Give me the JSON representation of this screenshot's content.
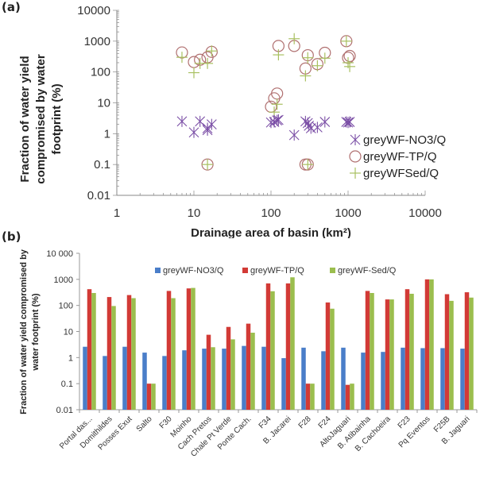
{
  "panels": {
    "a_label": "(a)",
    "b_label": "(b)"
  },
  "chart_data": [
    {
      "type": "scatter",
      "title": "",
      "xlabel": "Drainage area of basin (km²)",
      "ylabel_lines": [
        "Fraction of water yield",
        "compromised by water",
        "footprint (%)"
      ],
      "xscale": "log",
      "yscale": "log",
      "xlim": [
        1,
        10000
      ],
      "ylim": [
        0.01,
        10000
      ],
      "xticks": [
        "1",
        "10",
        "100",
        "1000",
        "10000"
      ],
      "yticks": [
        "0.01",
        "0.1",
        "1",
        "10",
        "100",
        "1000",
        "10000"
      ],
      "legend_position": "right",
      "series": [
        {
          "name": "greyWF-NO3/Q",
          "marker": "asterisk",
          "color": "#7B4FA6",
          "points": [
            [
              7,
              2.5
            ],
            [
              10,
              1.1
            ],
            [
              12,
              2.5
            ],
            [
              15,
              1.3
            ],
            [
              15,
              1.5
            ],
            [
              17,
              2.0
            ],
            [
              100,
              2.3
            ],
            [
              110,
              2.4
            ],
            [
              120,
              2.7
            ],
            [
              125,
              2.8
            ],
            [
              200,
              0.9
            ],
            [
              280,
              2.5
            ],
            [
              300,
              2.2
            ],
            [
              310,
              1.8
            ],
            [
              330,
              1.5
            ],
            [
              400,
              1.6
            ],
            [
              500,
              2.4
            ],
            [
              950,
              2.4
            ],
            [
              1000,
              2.3
            ],
            [
              1050,
              2.4
            ]
          ]
        },
        {
          "name": "greyWF-TP/Q",
          "marker": "circle",
          "color": "#B07070",
          "points": [
            [
              7,
              430
            ],
            [
              10,
              210
            ],
            [
              12,
              250
            ],
            [
              15,
              300
            ],
            [
              17,
              450
            ],
            [
              15,
              0.1
            ],
            [
              100,
              7.5
            ],
            [
              110,
              14
            ],
            [
              120,
              20
            ],
            [
              125,
              700
            ],
            [
              200,
              700
            ],
            [
              280,
              130
            ],
            [
              300,
              350
            ],
            [
              300,
              0.1
            ],
            [
              280,
              0.1
            ],
            [
              400,
              180
            ],
            [
              500,
              420
            ],
            [
              950,
              1000
            ],
            [
              1000,
              290
            ],
            [
              1050,
              330
            ]
          ]
        },
        {
          "name": "greyWFSed/Q",
          "marker": "plus",
          "color": "#A8C060",
          "points": [
            [
              7,
              300
            ],
            [
              10,
              95
            ],
            [
              12,
              190
            ],
            [
              15,
              190
            ],
            [
              17,
              480
            ],
            [
              15,
              0.1
            ],
            [
              110,
              5
            ],
            [
              120,
              9
            ],
            [
              125,
              360
            ],
            [
              200,
              1200
            ],
            [
              280,
              75
            ],
            [
              300,
              290
            ],
            [
              300,
              0.1
            ],
            [
              400,
              160
            ],
            [
              500,
              280
            ],
            [
              950,
              1000
            ],
            [
              1000,
              200
            ],
            [
              1050,
              150
            ]
          ]
        }
      ]
    },
    {
      "type": "bar",
      "title": "",
      "xlabel": "",
      "ylabel_lines": [
        "Fraction of water yield compromised by",
        "water footprint (%)"
      ],
      "yscale": "log",
      "ylim": [
        0.01,
        10000
      ],
      "yticks": [
        "0.01",
        "0.1",
        "1",
        "10",
        "100",
        "1000",
        "10 000"
      ],
      "legend_position": "top",
      "categories": [
        "Portal das...",
        "Domithildes",
        "Posses Exut",
        "Salto",
        "F30",
        "Moinho",
        "Cach Pretos",
        "Chale Pt Verde",
        "Ponte Cach.",
        "F34",
        "B. Jacarei",
        "F28",
        "F24",
        "AltoJaguari",
        "B. Atibainha",
        "B. Cachoeira",
        "F23",
        "Pq Eventos",
        "F25B",
        "B. Jaguari"
      ],
      "series": [
        {
          "name": "greyWF-NO3/Q",
          "color": "#4A7EC9",
          "values": [
            2.6,
            1.15,
            2.6,
            1.55,
            1.15,
            1.9,
            2.2,
            2.2,
            2.8,
            2.6,
            0.95,
            2.4,
            1.75,
            2.4,
            1.55,
            1.65,
            2.4,
            2.3,
            2.3,
            2.2
          ]
        },
        {
          "name": "greyWF-TP/Q",
          "color": "#D23A36",
          "values": [
            420,
            210,
            250,
            0.1,
            360,
            450,
            7.5,
            15,
            20,
            700,
            700,
            0.1,
            130,
            0.09,
            360,
            170,
            420,
            1000,
            270,
            320
          ]
        },
        {
          "name": "greyWF-Sed/Q",
          "color": "#9BBE4E",
          "values": [
            300,
            95,
            190,
            0.1,
            190,
            470,
            2.5,
            5,
            9,
            350,
            1200,
            0.1,
            75,
            0.1,
            300,
            170,
            280,
            1000,
            150,
            200
          ]
        }
      ]
    }
  ]
}
